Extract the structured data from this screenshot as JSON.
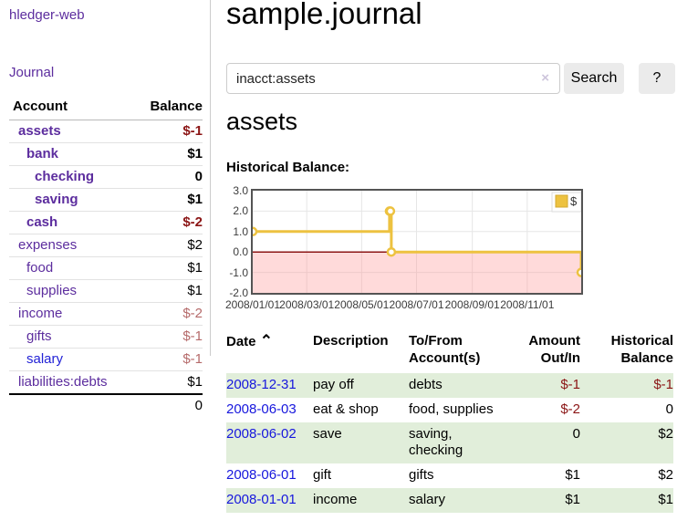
{
  "colors": {
    "link_purple": "#5c2d9e",
    "link_blue": "#1717dd",
    "negative_red": "#8b1515",
    "negative_muted": "#b56a6a",
    "row_green": "#e1eeda",
    "series_gold": "#edc240",
    "zero_line_red": "#8c1616",
    "button_gray": "#ebebeb"
  },
  "sidebar": {
    "app_title": "hledger-web",
    "nav": {
      "journal_label": "Journal"
    },
    "table": {
      "account_header": "Account",
      "balance_header": "Balance",
      "rows": [
        {
          "name": "assets",
          "balance": "$-1"
        },
        {
          "name": "bank",
          "balance": "$1"
        },
        {
          "name": "checking",
          "balance": "0"
        },
        {
          "name": "saving",
          "balance": "$1"
        },
        {
          "name": "cash",
          "balance": "$-2"
        },
        {
          "name": "expenses",
          "balance": "$2"
        },
        {
          "name": "food",
          "balance": "$1"
        },
        {
          "name": "supplies",
          "balance": "$1"
        },
        {
          "name": "income",
          "balance": "$-2"
        },
        {
          "name": "gifts",
          "balance": "$-1"
        },
        {
          "name": "salary",
          "balance": "$-1"
        },
        {
          "name": "liabilities:debts",
          "balance": "$1"
        }
      ],
      "total": "0"
    }
  },
  "header": {
    "title": "sample.journal"
  },
  "search": {
    "value": "inacct:assets",
    "clear_icon": "×",
    "search_button": "Search",
    "help_button": "?"
  },
  "account_page": {
    "title": "assets",
    "chart_label": "Historical Balance:"
  },
  "chart_data": {
    "type": "line",
    "step": true,
    "title": "Historical Balance:",
    "series": [
      {
        "name": "$",
        "color": "#edc240",
        "points": [
          [
            "2008-01-01",
            1
          ],
          [
            "2008-06-01",
            2
          ],
          [
            "2008-06-02",
            2
          ],
          [
            "2008-06-03",
            0
          ],
          [
            "2008-12-31",
            -1
          ]
        ]
      }
    ],
    "x_ticks": [
      "2008/01/01",
      "2008/03/01",
      "2008/05/01",
      "2008/07/01",
      "2008/09/01",
      "2008/11/01"
    ],
    "y_ticks": [
      "3.0",
      "2.0",
      "1.0",
      "0.0",
      "-1.0",
      "-2.0"
    ],
    "xlim": [
      "2008-01-01",
      "2008-12-31"
    ],
    "ylim": [
      -2,
      3
    ],
    "grid": true,
    "legend": {
      "position": "top-right",
      "label": "$",
      "swatch_color": "#edc240"
    },
    "negative_region": true
  },
  "register": {
    "headers": {
      "date": "Date",
      "sort_indicator": "⌃",
      "description": "Description",
      "accounts": "To/From Account(s)",
      "amount": "Amount Out/In",
      "balance": "Historical Balance"
    },
    "rows": [
      {
        "date": "2008-12-31",
        "description": "pay off",
        "accounts": "debts",
        "amount": "$-1",
        "balance": "$-1"
      },
      {
        "date": "2008-06-03",
        "description": "eat & shop",
        "accounts": "food, supplies",
        "amount": "$-2",
        "balance": "0"
      },
      {
        "date": "2008-06-02",
        "description": "save",
        "accounts": "saving, checking",
        "amount": "0",
        "balance": "$2"
      },
      {
        "date": "2008-06-01",
        "description": "gift",
        "accounts": "gifts",
        "amount": "$1",
        "balance": "$2"
      },
      {
        "date": "2008-01-01",
        "description": "income",
        "accounts": "salary",
        "amount": "$1",
        "balance": "$1"
      }
    ]
  }
}
